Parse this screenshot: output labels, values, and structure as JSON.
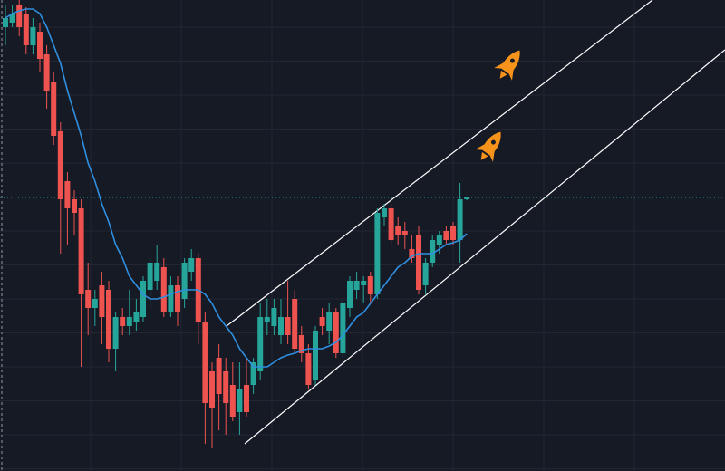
{
  "chart_data": {
    "type": "candlestick",
    "ylim": [
      0,
      520
    ],
    "grid": true,
    "up_color": "#26a69a",
    "down_color": "#ef5350",
    "open": [
      490,
      495,
      515,
      505,
      470,
      485,
      460,
      430,
      375,
      320,
      300,
      290,
      200,
      180,
      205,
      200,
      135,
      170,
      160,
      165,
      170,
      200,
      210,
      225,
      175,
      205,
      190,
      220,
      235,
      165,
      110,
      125,
      110,
      95,
      65,
      95,
      95,
      110,
      165,
      160,
      150,
      170,
      190,
      150,
      130,
      100,
      170,
      155,
      175,
      130,
      180,
      200,
      205,
      215,
      195,
      280,
      290,
      270,
      265,
      245,
      260,
      205,
      230,
      250,
      265,
      270,
      255,
      300
    ],
    "high": [
      515,
      515,
      520,
      512,
      500,
      495,
      470,
      440,
      385,
      330,
      310,
      300,
      230,
      200,
      220,
      210,
      175,
      180,
      200,
      190,
      215,
      235,
      250,
      235,
      215,
      215,
      235,
      245,
      240,
      175,
      120,
      140,
      125,
      120,
      120,
      125,
      125,
      185,
      190,
      190,
      190,
      210,
      200,
      160,
      140,
      160,
      180,
      185,
      180,
      190,
      215,
      220,
      215,
      220,
      290,
      295,
      295,
      280,
      275,
      260,
      270,
      235,
      260,
      265,
      270,
      275,
      318,
      303
    ],
    "low": [
      470,
      490,
      480,
      460,
      460,
      440,
      400,
      360,
      240,
      250,
      260,
      115,
      150,
      160,
      140,
      120,
      110,
      150,
      150,
      155,
      165,
      180,
      200,
      170,
      170,
      160,
      180,
      210,
      140,
      30,
      25,
      45,
      40,
      55,
      40,
      60,
      85,
      100,
      150,
      150,
      140,
      140,
      130,
      120,
      90,
      95,
      150,
      140,
      125,
      125,
      170,
      190,
      185,
      185,
      190,
      270,
      250,
      250,
      245,
      230,
      195,
      195,
      225,
      240,
      250,
      250,
      230,
      299
    ],
    "close": [
      500,
      505,
      490,
      470,
      490,
      455,
      420,
      370,
      300,
      290,
      285,
      195,
      180,
      190,
      170,
      135,
      170,
      160,
      170,
      175,
      210,
      230,
      230,
      175,
      205,
      175,
      230,
      235,
      165,
      75,
      70,
      85,
      75,
      60,
      90,
      65,
      120,
      170,
      170,
      180,
      170,
      150,
      135,
      130,
      95,
      155,
      160,
      175,
      130,
      185,
      210,
      210,
      210,
      195,
      285,
      290,
      255,
      260,
      260,
      235,
      200,
      230,
      255,
      260,
      255,
      255,
      300,
      302
    ],
    "overlay": {
      "type": "line",
      "color": "#2f8fe0",
      "values": [
        500,
        505,
        508,
        510,
        510,
        505,
        490,
        470,
        450,
        420,
        395,
        370,
        340,
        320,
        295,
        275,
        250,
        235,
        215,
        205,
        195,
        190,
        190,
        192,
        195,
        198,
        200,
        200,
        200,
        195,
        185,
        170,
        160,
        150,
        135,
        125,
        115,
        115,
        115,
        120,
        125,
        128,
        130,
        133,
        135,
        135,
        135,
        138,
        142,
        150,
        160,
        170,
        175,
        185,
        195,
        205,
        215,
        225,
        230,
        237,
        240,
        240,
        240,
        245,
        250,
        252,
        255,
        262
      ]
    }
  }
}
